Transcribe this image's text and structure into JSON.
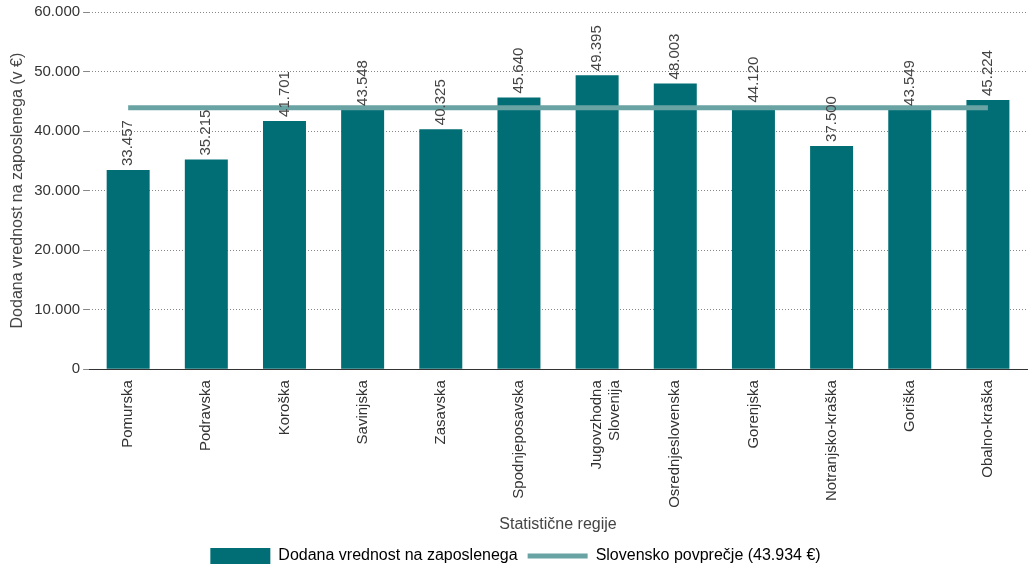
{
  "chart_data": {
    "type": "bar",
    "xlabel": "Statistične regije",
    "ylabel": "Dodana vrednost na zaposlenega (v €)",
    "categories": [
      "Pomurska",
      "Podravska",
      "Koroška",
      "Savinjska",
      "Zasavska",
      "Spodnjeposavska",
      "Jugovzhodna Slovenija",
      "Osrednjeslovenska",
      "Gorenjska",
      "Notranjsko-kraška",
      "Goriška",
      "Obalno-kraška"
    ],
    "series": [
      {
        "name": "Dodana vrednost na zaposlenega",
        "color": "#006e74",
        "values": [
          33457,
          35215,
          41701,
          43548,
          40325,
          45640,
          49395,
          48003,
          44120,
          37500,
          43549,
          45224
        ],
        "value_labels": [
          "33.457",
          "35.215",
          "41.701",
          "43.548",
          "40.325",
          "45.640",
          "49.395",
          "48.003",
          "44.120",
          "37.500",
          "43.549",
          "45.224"
        ]
      },
      {
        "name": "Slovensko povprečje (43.934 €)",
        "type": "line",
        "color": "#6aa3a3",
        "values": [
          43934,
          43934,
          43934,
          43934,
          43934,
          43934,
          43934,
          43934,
          43934,
          43934,
          43934,
          43934
        ]
      }
    ],
    "ylim": [
      0,
      60000
    ],
    "yticks": [
      0,
      {
        "value": 10000,
        "label": "10.000"
      },
      {
        "value": 20000,
        "label": "20.000"
      },
      {
        "value": 30000,
        "label": "30.000"
      },
      {
        "value": 40000,
        "label": "40.000"
      },
      {
        "value": 50000,
        "label": "50.000"
      },
      {
        "value": 60000,
        "label": "60.000"
      }
    ],
    "grid": "y",
    "legend": "bottom",
    "marker": "none",
    "line_style": "solid"
  }
}
